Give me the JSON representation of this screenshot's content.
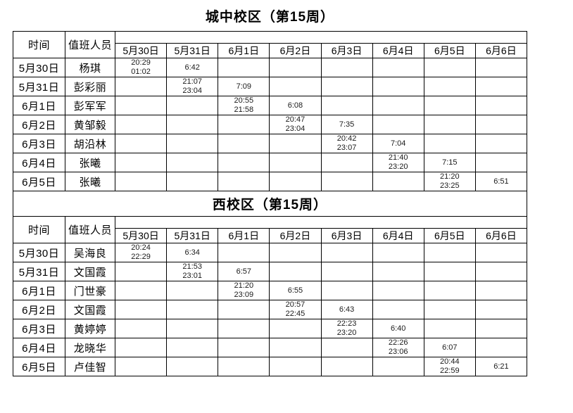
{
  "page": {
    "background": "#ffffff",
    "border_color": "#000000"
  },
  "tables": [
    {
      "title": "城中校区（第15周）",
      "header": {
        "time_label": "时间",
        "staff_label": "值班人员",
        "dates": [
          "5月30日",
          "5月31日",
          "6月1日",
          "6月2日",
          "6月3日",
          "6月4日",
          "6月5日",
          "6月6日"
        ]
      },
      "rows": [
        {
          "date": "5月30日",
          "staff": "杨琪",
          "times": [
            [
              "20:29",
              "01:02"
            ],
            [
              "6:42"
            ],
            [],
            [],
            [],
            [],
            [],
            []
          ]
        },
        {
          "date": "5月31日",
          "staff": "彭彩丽",
          "times": [
            [],
            [
              "21:07",
              "23:04"
            ],
            [
              "7:09"
            ],
            [],
            [],
            [],
            [],
            []
          ]
        },
        {
          "date": "6月1日",
          "staff": "彭军军",
          "times": [
            [],
            [],
            [
              "20:55",
              "21:58"
            ],
            [
              "6:08"
            ],
            [],
            [],
            [],
            []
          ]
        },
        {
          "date": "6月2日",
          "staff": "黄邹毅",
          "times": [
            [],
            [],
            [],
            [
              "20:47",
              "23:04"
            ],
            [
              "7:35"
            ],
            [],
            [],
            []
          ]
        },
        {
          "date": "6月3日",
          "staff": "胡沿林",
          "times": [
            [],
            [],
            [],
            [],
            [
              "20:42",
              "23:07"
            ],
            [
              "7:04"
            ],
            [],
            []
          ]
        },
        {
          "date": "6月4日",
          "staff": "张曦",
          "times": [
            [],
            [],
            [],
            [],
            [],
            [
              "21:40",
              "23:20"
            ],
            [
              "7:15"
            ],
            []
          ]
        },
        {
          "date": "6月5日",
          "staff": "张曦",
          "times": [
            [],
            [],
            [],
            [],
            [],
            [],
            [
              "21:20",
              "23:25"
            ],
            [
              "6:51"
            ]
          ]
        }
      ]
    },
    {
      "title": "西校区（第15周）",
      "header": {
        "time_label": "时间",
        "staff_label": "值班人员",
        "dates": [
          "5月30日",
          "5月31日",
          "6月1日",
          "6月2日",
          "6月3日",
          "6月4日",
          "6月5日",
          "6月6日"
        ]
      },
      "rows": [
        {
          "date": "5月30日",
          "staff": "吴海良",
          "times": [
            [
              "20:24",
              "22:29"
            ],
            [
              "6:34"
            ],
            [],
            [],
            [],
            [],
            [],
            []
          ]
        },
        {
          "date": "5月31日",
          "staff": "文国霞",
          "times": [
            [],
            [
              "21:53",
              "23:01"
            ],
            [
              "6:57"
            ],
            [],
            [],
            [],
            [],
            []
          ]
        },
        {
          "date": "6月1日",
          "staff": "门世豪",
          "times": [
            [],
            [],
            [
              "21:20",
              "23:09"
            ],
            [
              "6:55"
            ],
            [],
            [],
            [],
            []
          ]
        },
        {
          "date": "6月2日",
          "staff": "文国霞",
          "times": [
            [],
            [],
            [],
            [
              "20:57",
              "22:45"
            ],
            [
              "6:43"
            ],
            [],
            [],
            []
          ]
        },
        {
          "date": "6月3日",
          "staff": "黄婷婷",
          "times": [
            [],
            [],
            [],
            [],
            [
              "22:23",
              "23:20"
            ],
            [
              "6:40"
            ],
            [],
            []
          ]
        },
        {
          "date": "6月4日",
          "staff": "龙晓华",
          "times": [
            [],
            [],
            [],
            [],
            [],
            [
              "22:26",
              "23:06"
            ],
            [
              "6:07"
            ],
            []
          ]
        },
        {
          "date": "6月5日",
          "staff": "卢佳智",
          "times": [
            [],
            [],
            [],
            [],
            [],
            [],
            [
              "20:44",
              "22:59"
            ],
            [
              "6:21"
            ]
          ]
        }
      ]
    }
  ]
}
